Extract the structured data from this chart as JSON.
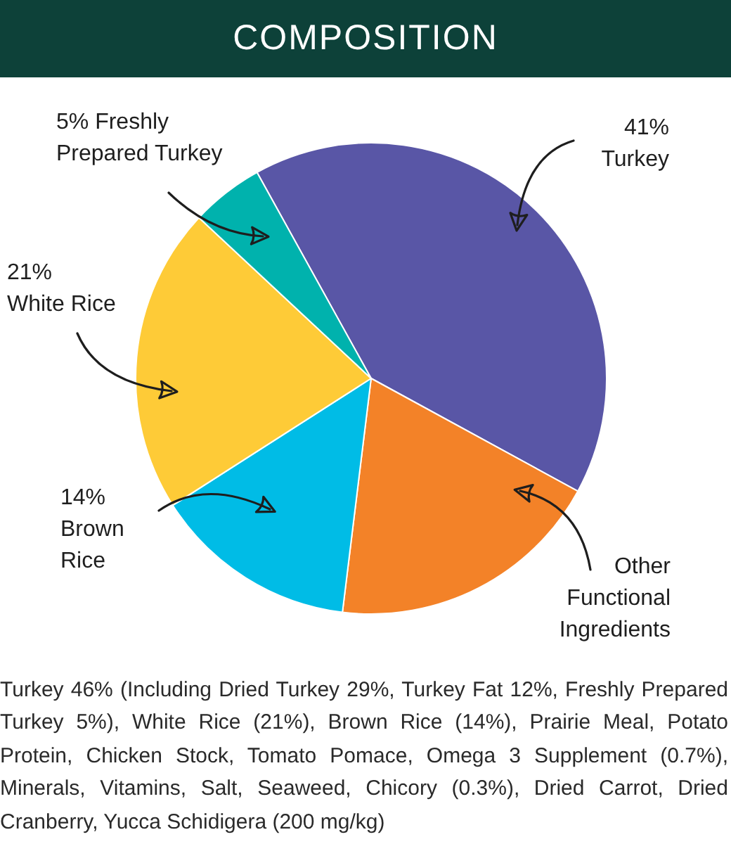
{
  "chart_data": {
    "type": "pie",
    "title": "COMPOSITION",
    "categories": [
      "Turkey",
      "Other Functional Ingredients",
      "Brown Rice",
      "White Rice",
      "Freshly Prepared Turkey"
    ],
    "values": [
      41,
      19,
      14,
      21,
      5
    ],
    "colors": [
      "#5956a6",
      "#f38228",
      "#00bce6",
      "#fecb37",
      "#00b2ad"
    ],
    "value_labels": [
      "41%",
      null,
      "14%",
      "21%",
      "5%"
    ],
    "annotations": [
      "Turkey 46% (Including Dried Turkey 29%, Turkey Fat 12%, Freshly Prepared Turkey 5%), White Rice (21%), Brown Rice (14%), Prairie Meal, Potato Protein, Chicken Stock, Tomato Pomace, Omega 3 Supplement (0.7%), Minerals, Vitamins, Salt, Seaweed, Chicory (0.3%), Dried Carrot, Dried Cranberry, Yucca Schidigera (200 mg/kg)"
    ]
  }
}
